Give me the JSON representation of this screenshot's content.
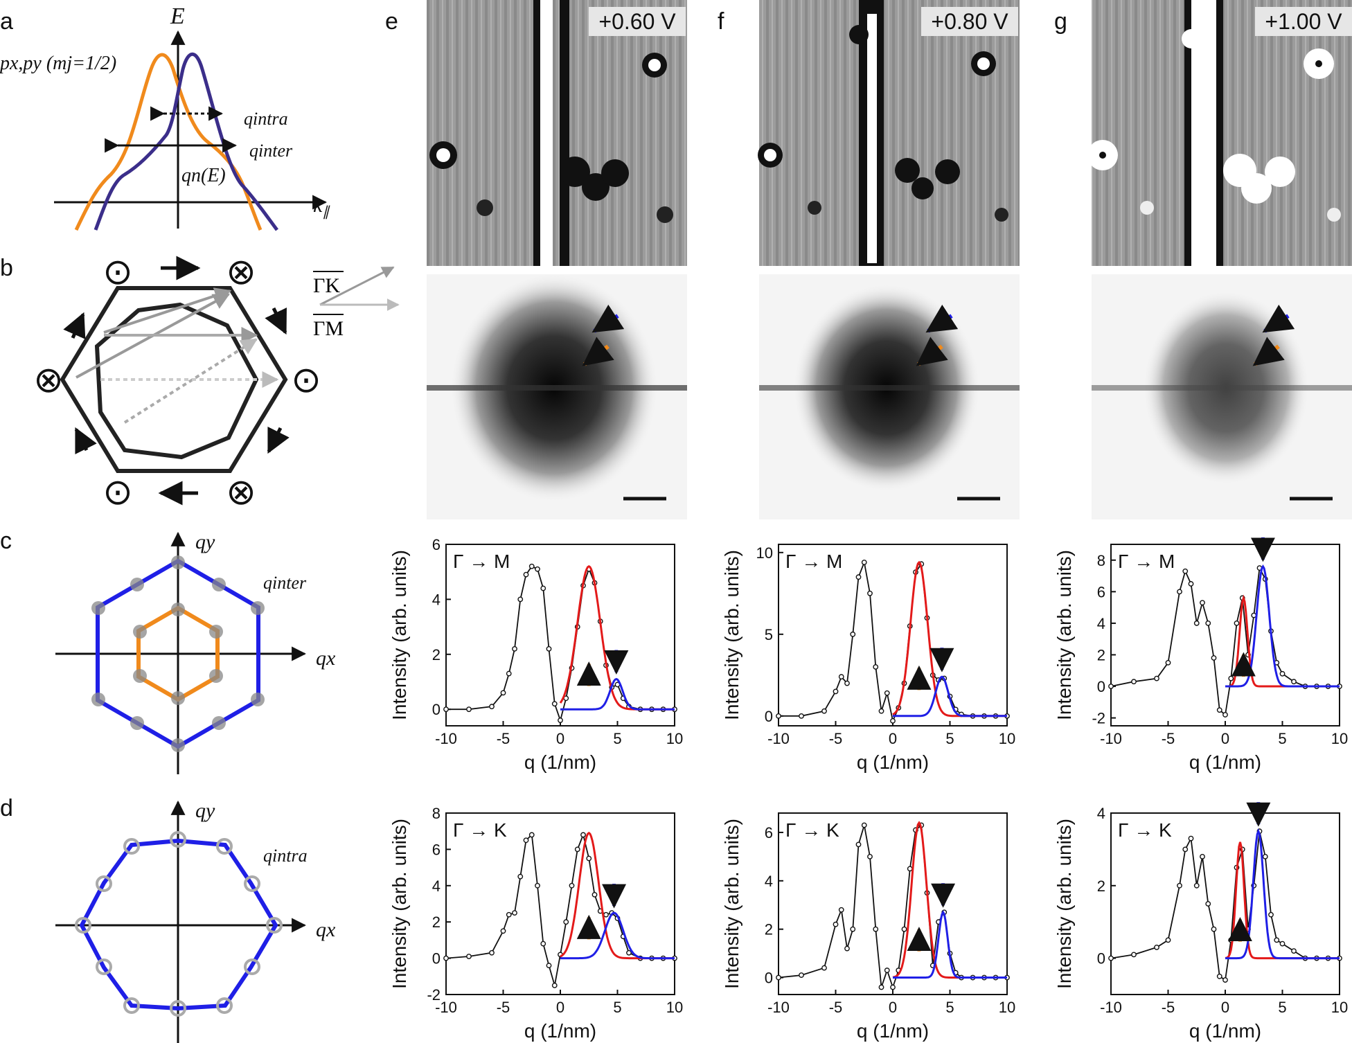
{
  "panel_labels": [
    "a",
    "b",
    "c",
    "d",
    "e",
    "f",
    "g"
  ],
  "panel_a": {
    "y_axis_label": "E",
    "x_axis_label": "k",
    "x_axis_subscript": "∥",
    "state_label": "px,py (mj=1/2)",
    "q_intra_label": "qintra",
    "q_inter_label": "qinter",
    "qn_label": "qn(E)",
    "colors": {
      "orange": "#f08a1c",
      "purple": "#3b2e8a"
    }
  },
  "panel_b": {
    "gamma_k_label": "ΓK",
    "gamma_m_label": "ΓM",
    "spin_symbols": [
      "⊙",
      "⊗",
      "⊗",
      "⊙",
      "⊙",
      "⊗"
    ]
  },
  "panel_c": {
    "x_label": "qx",
    "y_label": "qy",
    "q_label": "qinter",
    "colors": {
      "outer": "#1f1fe6",
      "inner": "#f08a1c"
    }
  },
  "panel_d": {
    "x_label": "qx",
    "y_label": "qy",
    "q_label": "qintra",
    "colors": {
      "outer": "#1f1fe6"
    }
  },
  "voltages": [
    "+0.60 V",
    "+0.80 V",
    "+1.00 V"
  ],
  "plot_text": {
    "ylabel": "Intensity (arb. units)",
    "xlabel": "q (1/nm)",
    "dir_m": "Γ → M",
    "dir_k": "Γ → K"
  },
  "chart_data": [
    {
      "type": "line",
      "panel": "e",
      "direction": "Γ→M",
      "xlim": [
        -10,
        10
      ],
      "ylim": [
        -0.6,
        6
      ],
      "xticks": [
        -10,
        -5,
        0,
        5,
        10
      ],
      "yticks": [
        0,
        2,
        4,
        6
      ],
      "data_x": [
        -10,
        -8,
        -6,
        -5,
        -4.5,
        -4,
        -3.5,
        -3,
        -2.5,
        -2,
        -1.5,
        -1,
        -0.5,
        0,
        0.5,
        1,
        1.5,
        2,
        2.5,
        3,
        3.5,
        4,
        4.5,
        5,
        5.5,
        6,
        7,
        8,
        9,
        10
      ],
      "data_y": [
        0,
        0,
        0.1,
        0.6,
        1.3,
        2.2,
        4.0,
        4.9,
        5.2,
        5.1,
        4.4,
        2.2,
        0.2,
        -0.4,
        0.4,
        1.5,
        3.0,
        4.5,
        5.1,
        4.6,
        3.2,
        1.6,
        0.8,
        0.9,
        0.4,
        0.1,
        0,
        0,
        0,
        0
      ],
      "fit_red": {
        "center": 2.5,
        "amplitude": 5.2,
        "sigma": 1.0
      },
      "fit_blue": {
        "center": 4.9,
        "amplitude": 1.1,
        "sigma": 0.55
      }
    },
    {
      "type": "line",
      "panel": "f",
      "direction": "Γ→M",
      "xlim": [
        -10,
        10
      ],
      "ylim": [
        -0.6,
        10.5
      ],
      "xticks": [
        -10,
        -5,
        0,
        5,
        10
      ],
      "yticks": [
        0,
        5,
        10
      ],
      "data_x": [
        -10,
        -8,
        -6,
        -5,
        -4.5,
        -4,
        -3.5,
        -3,
        -2.5,
        -2,
        -1.5,
        -1,
        -0.5,
        0,
        0.5,
        1,
        1.5,
        2,
        2.5,
        3,
        3.5,
        4,
        4.5,
        5,
        5.5,
        6,
        7,
        8,
        9,
        10
      ],
      "data_y": [
        0,
        0,
        0.3,
        1.5,
        2.4,
        2.0,
        5.0,
        8.5,
        9.4,
        7.5,
        3.0,
        0.3,
        1.4,
        -0.3,
        0.5,
        2.0,
        5.5,
        8.8,
        9.3,
        6.0,
        2.5,
        2.2,
        2.3,
        1.2,
        0.4,
        0.1,
        0,
        0,
        0,
        0
      ],
      "fit_red": {
        "center": 2.3,
        "amplitude": 9.4,
        "sigma": 0.75
      },
      "fit_blue": {
        "center": 4.3,
        "amplitude": 2.4,
        "sigma": 0.55
      }
    },
    {
      "type": "line",
      "panel": "g",
      "direction": "Γ→M",
      "xlim": [
        -10,
        10
      ],
      "ylim": [
        -2.5,
        9
      ],
      "xticks": [
        -10,
        -5,
        0,
        5,
        10
      ],
      "yticks": [
        -2,
        0,
        2,
        4,
        6,
        8
      ],
      "data_x": [
        -10,
        -8,
        -6,
        -5,
        -4,
        -3.5,
        -3,
        -2.5,
        -2,
        -1.5,
        -1,
        -0.5,
        0,
        0.5,
        1,
        1.5,
        2,
        2.5,
        3,
        3.5,
        4,
        4.5,
        5,
        6,
        7,
        8,
        9,
        10
      ],
      "data_y": [
        0,
        0.3,
        0.5,
        1.5,
        6.0,
        7.3,
        6.5,
        4.0,
        5.3,
        4.0,
        1.8,
        -1.5,
        -1.8,
        0.5,
        4.0,
        5.6,
        2.0,
        4.5,
        7.5,
        6.8,
        3.5,
        1.5,
        0.8,
        0.3,
        0,
        0,
        0,
        0
      ],
      "fit_red": {
        "center": 1.6,
        "amplitude": 5.6,
        "sigma": 0.35
      },
      "fit_blue": {
        "center": 3.3,
        "amplitude": 7.6,
        "sigma": 0.55
      }
    },
    {
      "type": "line",
      "panel": "e",
      "direction": "Γ→K",
      "xlim": [
        -10,
        10
      ],
      "ylim": [
        -2,
        8
      ],
      "xticks": [
        -10,
        -5,
        0,
        5,
        10
      ],
      "yticks": [
        -2,
        0,
        2,
        4,
        6,
        8
      ],
      "data_x": [
        -10,
        -8,
        -6,
        -5,
        -4.5,
        -4,
        -3.5,
        -3,
        -2.5,
        -2,
        -1.5,
        -1,
        -0.5,
        0,
        0.5,
        1,
        1.5,
        2,
        2.5,
        3,
        3.5,
        4,
        4.5,
        5,
        5.5,
        6,
        7,
        8,
        9,
        10
      ],
      "data_y": [
        0,
        0.1,
        0.3,
        1.5,
        2.4,
        2.5,
        4.5,
        6.5,
        6.8,
        4.0,
        0.8,
        -0.4,
        -1.5,
        0.2,
        2.0,
        4.0,
        6.0,
        6.8,
        5.5,
        3.5,
        2.6,
        2.4,
        2.5,
        2.2,
        1.2,
        0.3,
        0,
        0,
        0,
        0
      ],
      "fit_red": {
        "center": 2.5,
        "amplitude": 6.9,
        "sigma": 0.85
      },
      "fit_blue": {
        "center": 4.7,
        "amplitude": 2.5,
        "sigma": 0.8
      }
    },
    {
      "type": "line",
      "panel": "f",
      "direction": "Γ→K",
      "xlim": [
        -10,
        10
      ],
      "ylim": [
        -0.7,
        6.8
      ],
      "xticks": [
        -10,
        -5,
        0,
        5,
        10
      ],
      "yticks": [
        0,
        2,
        4,
        6
      ],
      "data_x": [
        -10,
        -8,
        -6,
        -5,
        -4.5,
        -4,
        -3.5,
        -3,
        -2.5,
        -2,
        -1.5,
        -1,
        -0.5,
        0,
        0.5,
        1,
        1.5,
        2,
        2.5,
        3,
        3.5,
        4,
        4.5,
        5,
        5.5,
        6,
        7,
        8,
        9,
        10
      ],
      "data_y": [
        0,
        0.1,
        0.4,
        2.2,
        2.8,
        1.2,
        2.0,
        5.5,
        6.3,
        5.0,
        2.0,
        -0.4,
        0.3,
        -0.4,
        0.3,
        2.0,
        4.5,
        6.1,
        6.3,
        3.5,
        0.5,
        2.3,
        2.7,
        1.0,
        0.2,
        0,
        0,
        0,
        0,
        0
      ],
      "fit_red": {
        "center": 2.3,
        "amplitude": 6.4,
        "sigma": 0.65
      },
      "fit_blue": {
        "center": 4.4,
        "amplitude": 2.7,
        "sigma": 0.4
      }
    },
    {
      "type": "line",
      "panel": "g",
      "direction": "Γ→K",
      "xlim": [
        -10,
        10
      ],
      "ylim": [
        -1,
        4
      ],
      "xticks": [
        -10,
        -5,
        0,
        5,
        10
      ],
      "yticks": [
        0,
        2,
        4
      ],
      "data_x": [
        -10,
        -8,
        -6,
        -5,
        -4,
        -3.5,
        -3,
        -2.5,
        -2,
        -1.5,
        -1,
        -0.5,
        0,
        0.5,
        1,
        1.5,
        2,
        2.5,
        3,
        3.5,
        4,
        4.5,
        5,
        6,
        7,
        8,
        9,
        10
      ],
      "data_y": [
        0,
        0.1,
        0.3,
        0.5,
        2.0,
        3.0,
        3.3,
        2.0,
        2.8,
        1.5,
        0.8,
        -0.5,
        -0.6,
        0.5,
        2.5,
        3.0,
        0.8,
        2.0,
        3.5,
        2.8,
        1.2,
        0.5,
        0.4,
        0.2,
        0,
        0,
        0,
        0
      ],
      "fit_red": {
        "center": 1.3,
        "amplitude": 3.2,
        "sigma": 0.35
      },
      "fit_blue": {
        "center": 2.9,
        "amplitude": 3.5,
        "sigma": 0.45
      }
    }
  ]
}
